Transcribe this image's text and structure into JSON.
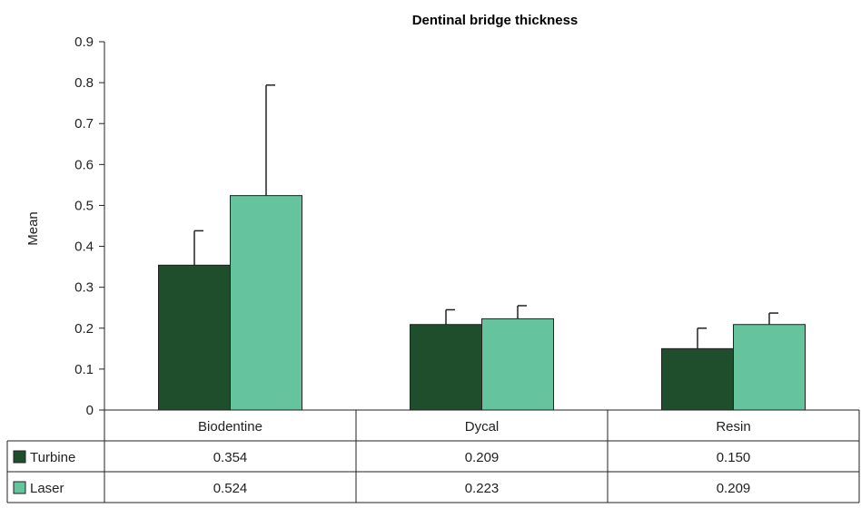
{
  "chart_data": {
    "type": "bar",
    "title": "Dentinal bridge thickness",
    "ylabel": "Mean",
    "xlabel": "",
    "ylim": [
      0,
      0.9
    ],
    "yticks": [
      0,
      0.1,
      0.2,
      0.3,
      0.4,
      0.5,
      0.6,
      0.7,
      0.8,
      0.9
    ],
    "ytick_labels": [
      "0",
      "0.1",
      "0.2",
      "0.3",
      "0.4",
      "0.5",
      "0.6",
      "0.7",
      "0.8",
      "0.9"
    ],
    "grid": false,
    "legend": "data-table",
    "categories": [
      "Biodentine",
      "Dycal",
      "Resin"
    ],
    "series": [
      {
        "name": "Turbine",
        "color": "#1f4e2c",
        "values": [
          0.354,
          0.209,
          0.15
        ],
        "value_labels": [
          "0.354",
          "0.209",
          "0.150"
        ],
        "error": [
          0.084,
          0.036,
          0.05
        ]
      },
      {
        "name": "Laser",
        "color": "#65c39e",
        "values": [
          0.524,
          0.223,
          0.209
        ],
        "value_labels": [
          "0.524",
          "0.223",
          "0.209"
        ],
        "error": [
          0.27,
          0.032,
          0.028
        ]
      }
    ]
  }
}
